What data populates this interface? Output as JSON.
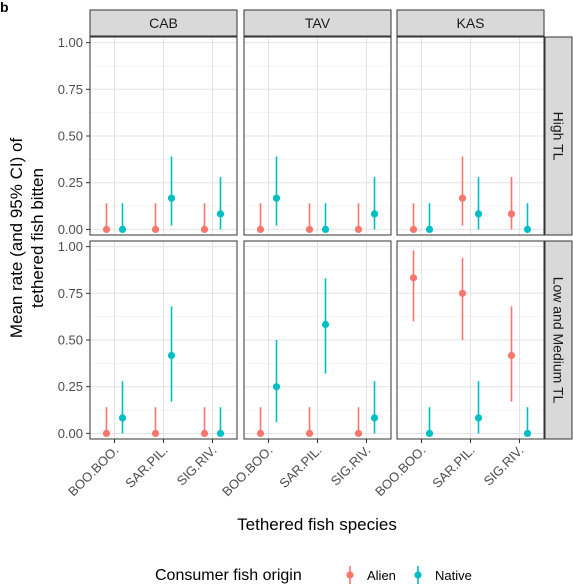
{
  "panel_letter": "b",
  "chart_data": {
    "type": "scatter",
    "subtype": "pointrange-facet-grid",
    "ylabel_lines": [
      "Mean rate (and 95% CI) of",
      "tethered fish bitten"
    ],
    "xlabel": "Tethered fish species",
    "categories": [
      "BOO.BOO.",
      "SAR.PIL.",
      "SIG.RIV."
    ],
    "y_ticks": [
      "0.00",
      "0.25",
      "0.50",
      "0.75",
      "1.00"
    ],
    "ylim": [
      -0.03,
      1.03
    ],
    "columns": [
      "CAB",
      "TAV",
      "KAS"
    ],
    "rows": [
      "High TL",
      "Low and Medium TL"
    ],
    "legend": {
      "title": "Consumer fish origin",
      "position": "bottom",
      "entries": [
        {
          "name": "Alien",
          "color": "#F8766D"
        },
        {
          "name": "Native",
          "color": "#00BFC4"
        }
      ]
    },
    "grid": true,
    "panels": [
      {
        "row": "High TL",
        "col": "CAB",
        "series": [
          {
            "name": "Alien",
            "points": [
              {
                "x": "BOO.BOO.",
                "y": 0.0,
                "lo": 0.0,
                "hi": 0.14
              },
              {
                "x": "SAR.PIL.",
                "y": 0.0,
                "lo": 0.0,
                "hi": 0.14
              },
              {
                "x": "SIG.RIV.",
                "y": 0.0,
                "lo": 0.0,
                "hi": 0.14
              }
            ]
          },
          {
            "name": "Native",
            "points": [
              {
                "x": "BOO.BOO.",
                "y": 0.0,
                "lo": 0.0,
                "hi": 0.14
              },
              {
                "x": "SAR.PIL.",
                "y": 0.167,
                "lo": 0.02,
                "hi": 0.39
              },
              {
                "x": "SIG.RIV.",
                "y": 0.083,
                "lo": 0.0,
                "hi": 0.28
              }
            ]
          }
        ]
      },
      {
        "row": "High TL",
        "col": "TAV",
        "series": [
          {
            "name": "Alien",
            "points": [
              {
                "x": "BOO.BOO.",
                "y": 0.0,
                "lo": 0.0,
                "hi": 0.14
              },
              {
                "x": "SAR.PIL.",
                "y": 0.0,
                "lo": 0.0,
                "hi": 0.14
              },
              {
                "x": "SIG.RIV.",
                "y": 0.0,
                "lo": 0.0,
                "hi": 0.14
              }
            ]
          },
          {
            "name": "Native",
            "points": [
              {
                "x": "BOO.BOO.",
                "y": 0.167,
                "lo": 0.02,
                "hi": 0.39
              },
              {
                "x": "SAR.PIL.",
                "y": 0.0,
                "lo": 0.0,
                "hi": 0.14
              },
              {
                "x": "SIG.RIV.",
                "y": 0.083,
                "lo": 0.0,
                "hi": 0.28
              }
            ]
          }
        ]
      },
      {
        "row": "High TL",
        "col": "KAS",
        "series": [
          {
            "name": "Alien",
            "points": [
              {
                "x": "BOO.BOO.",
                "y": 0.0,
                "lo": 0.0,
                "hi": 0.14
              },
              {
                "x": "SAR.PIL.",
                "y": 0.167,
                "lo": 0.02,
                "hi": 0.39
              },
              {
                "x": "SIG.RIV.",
                "y": 0.083,
                "lo": 0.0,
                "hi": 0.28
              }
            ]
          },
          {
            "name": "Native",
            "points": [
              {
                "x": "BOO.BOO.",
                "y": 0.0,
                "lo": 0.0,
                "hi": 0.14
              },
              {
                "x": "SAR.PIL.",
                "y": 0.083,
                "lo": 0.0,
                "hi": 0.28
              },
              {
                "x": "SIG.RIV.",
                "y": 0.0,
                "lo": 0.0,
                "hi": 0.14
              }
            ]
          }
        ]
      },
      {
        "row": "Low and Medium TL",
        "col": "CAB",
        "series": [
          {
            "name": "Alien",
            "points": [
              {
                "x": "BOO.BOO.",
                "y": 0.0,
                "lo": 0.0,
                "hi": 0.14
              },
              {
                "x": "SAR.PIL.",
                "y": 0.0,
                "lo": 0.0,
                "hi": 0.14
              },
              {
                "x": "SIG.RIV.",
                "y": 0.0,
                "lo": 0.0,
                "hi": 0.14
              }
            ]
          },
          {
            "name": "Native",
            "points": [
              {
                "x": "BOO.BOO.",
                "y": 0.083,
                "lo": 0.0,
                "hi": 0.28
              },
              {
                "x": "SAR.PIL.",
                "y": 0.417,
                "lo": 0.17,
                "hi": 0.68
              },
              {
                "x": "SIG.RIV.",
                "y": 0.0,
                "lo": 0.0,
                "hi": 0.14
              }
            ]
          }
        ]
      },
      {
        "row": "Low and Medium TL",
        "col": "TAV",
        "series": [
          {
            "name": "Alien",
            "points": [
              {
                "x": "BOO.BOO.",
                "y": 0.0,
                "lo": 0.0,
                "hi": 0.14
              },
              {
                "x": "SAR.PIL.",
                "y": 0.0,
                "lo": 0.0,
                "hi": 0.14
              },
              {
                "x": "SIG.RIV.",
                "y": 0.0,
                "lo": 0.0,
                "hi": 0.14
              }
            ]
          },
          {
            "name": "Native",
            "points": [
              {
                "x": "BOO.BOO.",
                "y": 0.25,
                "lo": 0.06,
                "hi": 0.5
              },
              {
                "x": "SAR.PIL.",
                "y": 0.583,
                "lo": 0.32,
                "hi": 0.83
              },
              {
                "x": "SIG.RIV.",
                "y": 0.083,
                "lo": 0.0,
                "hi": 0.28
              }
            ]
          }
        ]
      },
      {
        "row": "Low and Medium TL",
        "col": "KAS",
        "series": [
          {
            "name": "Alien",
            "points": [
              {
                "x": "BOO.BOO.",
                "y": 0.833,
                "lo": 0.6,
                "hi": 0.98
              },
              {
                "x": "SAR.PIL.",
                "y": 0.75,
                "lo": 0.5,
                "hi": 0.94
              },
              {
                "x": "SIG.RIV.",
                "y": 0.417,
                "lo": 0.17,
                "hi": 0.68
              }
            ]
          },
          {
            "name": "Native",
            "points": [
              {
                "x": "BOO.BOO.",
                "y": 0.0,
                "lo": 0.0,
                "hi": 0.14
              },
              {
                "x": "SAR.PIL.",
                "y": 0.083,
                "lo": 0.0,
                "hi": 0.28
              },
              {
                "x": "SIG.RIV.",
                "y": 0.0,
                "lo": 0.0,
                "hi": 0.14
              }
            ]
          }
        ]
      }
    ]
  }
}
